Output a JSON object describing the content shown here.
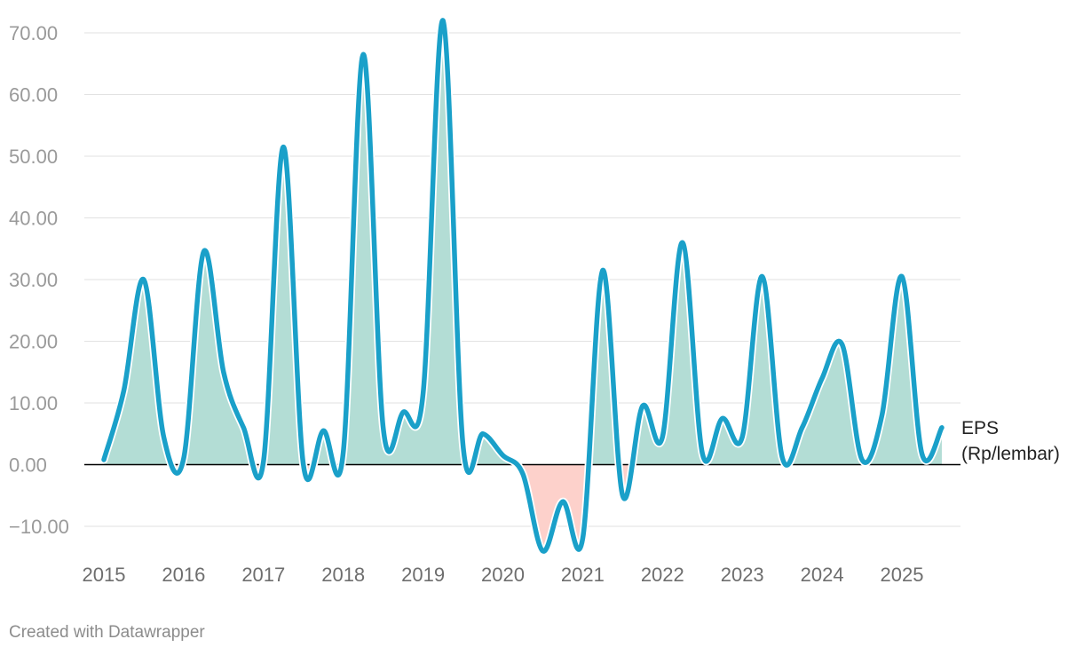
{
  "chart_data": {
    "type": "area",
    "title": "",
    "xlabel": "",
    "ylabel": "",
    "x_ticks": [
      "2015",
      "2016",
      "2017",
      "2018",
      "2019",
      "2020",
      "2021",
      "2022",
      "2023",
      "2024",
      "2025"
    ],
    "y_ticks": [
      "−10.00",
      "0.00",
      "10.00",
      "20.00",
      "30.00",
      "40.00",
      "50.00",
      "60.00",
      "70.00"
    ],
    "ylim": [
      -15,
      73
    ],
    "xlim": [
      2015,
      2025.75
    ],
    "grid": true,
    "series": [
      {
        "name": "EPS\n(Rp/lembar)",
        "label_lines": [
          "EPS",
          "(Rp/lembar)"
        ],
        "line_color": "#1aa0c9",
        "positive_fill": "#b3ddd5",
        "negative_fill": "#fdd1cb",
        "points": [
          {
            "x": 2015.0,
            "y": 0.8
          },
          {
            "x": 2015.25,
            "y": 12.0
          },
          {
            "x": 2015.5,
            "y": 30.0
          },
          {
            "x": 2015.75,
            "y": 4.5
          },
          {
            "x": 2016.0,
            "y": 1.0
          },
          {
            "x": 2016.25,
            "y": 34.5
          },
          {
            "x": 2016.5,
            "y": 15.0
          },
          {
            "x": 2016.75,
            "y": 6.0
          },
          {
            "x": 2017.0,
            "y": 0.5
          },
          {
            "x": 2017.25,
            "y": 51.5
          },
          {
            "x": 2017.5,
            "y": 0.0
          },
          {
            "x": 2017.75,
            "y": 5.5
          },
          {
            "x": 2018.0,
            "y": 2.0
          },
          {
            "x": 2018.25,
            "y": 66.5
          },
          {
            "x": 2018.5,
            "y": 6.0
          },
          {
            "x": 2018.75,
            "y": 8.5
          },
          {
            "x": 2019.0,
            "y": 11.5
          },
          {
            "x": 2019.25,
            "y": 72.0
          },
          {
            "x": 2019.5,
            "y": 3.2
          },
          {
            "x": 2019.75,
            "y": 5.0
          },
          {
            "x": 2020.0,
            "y": 1.5
          },
          {
            "x": 2020.25,
            "y": -1.5
          },
          {
            "x": 2020.5,
            "y": -14.0
          },
          {
            "x": 2020.75,
            "y": -6.0
          },
          {
            "x": 2021.0,
            "y": -12.0
          },
          {
            "x": 2021.25,
            "y": 31.5
          },
          {
            "x": 2021.5,
            "y": -5.0
          },
          {
            "x": 2021.75,
            "y": 9.5
          },
          {
            "x": 2022.0,
            "y": 4.5
          },
          {
            "x": 2022.25,
            "y": 36.0
          },
          {
            "x": 2022.5,
            "y": 1.8
          },
          {
            "x": 2022.75,
            "y": 7.5
          },
          {
            "x": 2023.0,
            "y": 4.5
          },
          {
            "x": 2023.25,
            "y": 30.5
          },
          {
            "x": 2023.5,
            "y": 1.2
          },
          {
            "x": 2023.75,
            "y": 6.0
          },
          {
            "x": 2024.0,
            "y": 14.0
          },
          {
            "x": 2024.25,
            "y": 19.5
          },
          {
            "x": 2024.5,
            "y": 0.8
          },
          {
            "x": 2024.75,
            "y": 8.0
          },
          {
            "x": 2025.0,
            "y": 30.5
          },
          {
            "x": 2025.25,
            "y": 1.8
          },
          {
            "x": 2025.5,
            "y": 6.0
          }
        ]
      }
    ]
  },
  "footer": {
    "credit": "Created with Datawrapper"
  }
}
